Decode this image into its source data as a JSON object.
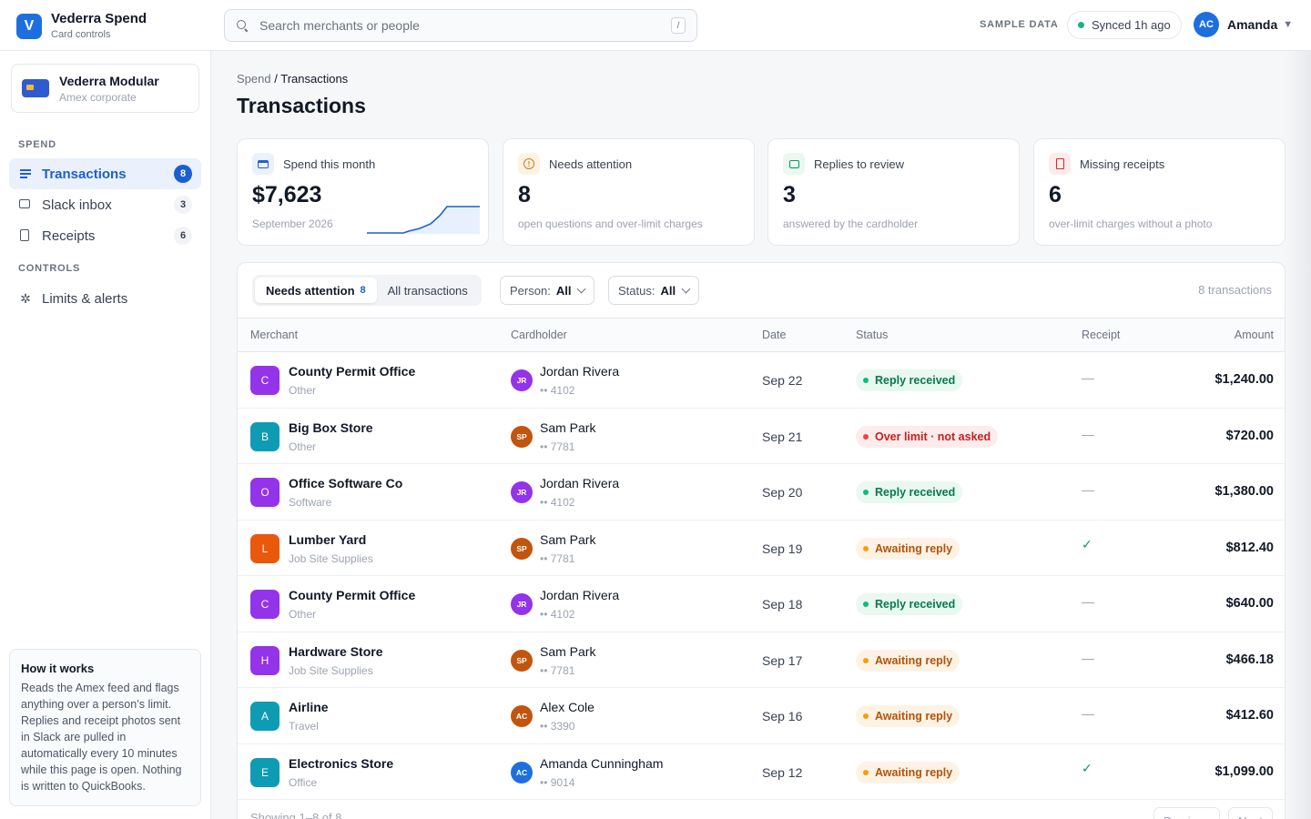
{
  "brand": {
    "logo_letter": "V",
    "name": "Vederra Spend",
    "subtitle": "Card controls"
  },
  "search": {
    "placeholder": "Search merchants or people",
    "shortcut": "/"
  },
  "header": {
    "sample_label": "SAMPLE DATA",
    "sync_status": "Synced 1h ago",
    "user_initials": "AC",
    "user_name": "Amanda"
  },
  "sidebar": {
    "card": {
      "name": "Vederra Modular",
      "type": "Amex corporate"
    },
    "spend_label": "SPEND",
    "controls_label": "CONTROLS",
    "items": [
      {
        "label": "Transactions",
        "count": "8",
        "icon": "list-icon"
      },
      {
        "label": "Slack inbox",
        "count": "3",
        "icon": "chat-icon"
      },
      {
        "label": "Receipts",
        "count": "6",
        "icon": "receipt-icon"
      }
    ],
    "controls": [
      {
        "label": "Limits & alerts",
        "icon": "settings-sun-icon"
      }
    ],
    "how": {
      "title": "How it works",
      "body": "Reads the Amex feed and flags anything over a person’s limit. Replies and receipt photos sent in Slack are pulled in automatically every 10 minutes while this page is open. Nothing is written to QuickBooks."
    }
  },
  "breadcrumb": {
    "parent": "Spend",
    "separator": "/",
    "current": "Transactions"
  },
  "page_title": "Transactions",
  "kpis": [
    {
      "label": "Spend this month",
      "value": "$7,623",
      "sub": "September 2026",
      "icon": "card-icon"
    },
    {
      "label": "Needs attention",
      "value": "8",
      "sub": "open questions and over-limit charges",
      "icon": "alert-icon"
    },
    {
      "label": "Replies to review",
      "value": "3",
      "sub": "answered by the cardholder",
      "icon": "chat-icon"
    },
    {
      "label": "Missing receipts",
      "value": "6",
      "sub": "over-limit charges without a photo",
      "icon": "receipt-icon"
    }
  ],
  "tabs": {
    "needs_attention": "Needs attention",
    "needs_attention_count": "8",
    "all": "All transactions"
  },
  "filters": {
    "person_label": "Person:",
    "person_value": "All",
    "status_label": "Status:",
    "status_value": "All"
  },
  "tx_count": "8 transactions",
  "columns": {
    "merchant": "Merchant",
    "cardholder": "Cardholder",
    "date": "Date",
    "status": "Status",
    "receipt": "Receipt",
    "amount": "Amount"
  },
  "rows": [
    {
      "initial": "C",
      "merchant": "County Permit Office",
      "category": "Other",
      "holder_initials": "JR",
      "holder": "Jordan Rivera",
      "card": "•• 4102",
      "date": "Sep 22",
      "status": "Reply received",
      "status_kind": "reply",
      "receipt": "—",
      "amount": "$1,240.00"
    },
    {
      "initial": "B",
      "merchant": "Big Box Store",
      "category": "Other",
      "holder_initials": "SP",
      "holder": "Sam Park",
      "card": "•• 7781",
      "date": "Sep 21",
      "status": "Over limit · not asked",
      "status_kind": "over",
      "receipt": "—",
      "amount": "$720.00"
    },
    {
      "initial": "O",
      "merchant": "Office Software Co",
      "category": "Software",
      "holder_initials": "JR",
      "holder": "Jordan Rivera",
      "card": "•• 4102",
      "date": "Sep 20",
      "status": "Reply received",
      "status_kind": "reply",
      "receipt": "—",
      "amount": "$1,380.00"
    },
    {
      "initial": "L",
      "merchant": "Lumber Yard",
      "category": "Job Site Supplies",
      "holder_initials": "SP",
      "holder": "Sam Park",
      "card": "•• 7781",
      "date": "Sep 19",
      "status": "Awaiting reply",
      "status_kind": "await",
      "receipt": "✓",
      "amount": "$812.40"
    },
    {
      "initial": "C",
      "merchant": "County Permit Office",
      "category": "Other",
      "holder_initials": "JR",
      "holder": "Jordan Rivera",
      "card": "•• 4102",
      "date": "Sep 18",
      "status": "Reply received",
      "status_kind": "reply",
      "receipt": "—",
      "amount": "$640.00"
    },
    {
      "initial": "H",
      "merchant": "Hardware Store",
      "category": "Job Site Supplies",
      "holder_initials": "SP",
      "holder": "Sam Park",
      "card": "•• 7781",
      "date": "Sep 17",
      "status": "Awaiting reply",
      "status_kind": "await",
      "receipt": "—",
      "amount": "$466.18"
    },
    {
      "initial": "A",
      "merchant": "Airline",
      "category": "Travel",
      "holder_initials": "AC",
      "holder": "Alex Cole",
      "card": "•• 3390",
      "date": "Sep 16",
      "status": "Awaiting reply",
      "status_kind": "await",
      "receipt": "—",
      "amount": "$412.60"
    },
    {
      "initial": "E",
      "merchant": "Electronics Store",
      "category": "Office",
      "holder_initials": "AC",
      "holder": "Amanda Cunningham",
      "card": "•• 9014",
      "date": "Sep 12",
      "status": "Awaiting reply",
      "status_kind": "await",
      "receipt": "✓",
      "amount": "$1,099.00"
    }
  ],
  "footer": {
    "showing": "Showing 1–8 of 8",
    "prev": "Previous",
    "next": "Next"
  },
  "colors": {
    "accent": "#1d5fd1",
    "merchant_icons": [
      "#9333ea",
      "#0e9bb4",
      "#9333ea",
      "#ea580c",
      "#9333ea",
      "#9333ea",
      "#0e9bb4",
      "#0e9bb4"
    ],
    "holder_avatars": [
      "#9333ea",
      "#c2550e",
      "#9333ea",
      "#c2550e",
      "#9333ea",
      "#c2550e",
      "#c2550e",
      "#1d6fe0"
    ]
  }
}
